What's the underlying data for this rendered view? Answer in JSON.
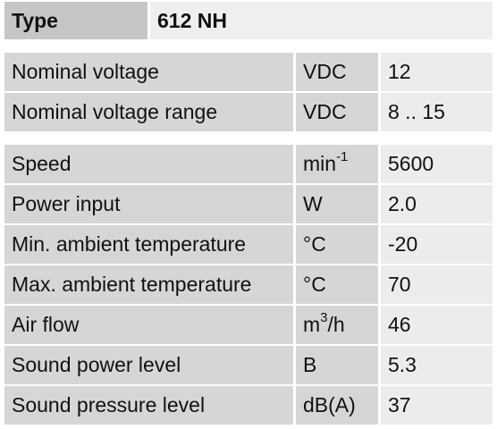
{
  "header": {
    "label": "Type",
    "value": "612 NH"
  },
  "groups": [
    [
      [
        "Nominal voltage",
        "VDC",
        "12"
      ],
      [
        "Nominal voltage range",
        "VDC",
        "8 .. 15"
      ]
    ],
    [
      [
        "Speed",
        {
          "base": "min",
          "sup": "-1"
        },
        "5600"
      ],
      [
        "Power input",
        "W",
        "2.0"
      ],
      [
        "Min. ambient temperature",
        "°C",
        "-20"
      ],
      [
        "Max. ambient temperature",
        "°C",
        "70"
      ],
      [
        "Air flow",
        {
          "base": "m",
          "sup": "3",
          "tail": "/h"
        },
        "46"
      ],
      [
        "Sound power level",
        "B",
        "5.3"
      ],
      [
        "Sound pressure level",
        "dB(A)",
        "37"
      ]
    ]
  ]
}
